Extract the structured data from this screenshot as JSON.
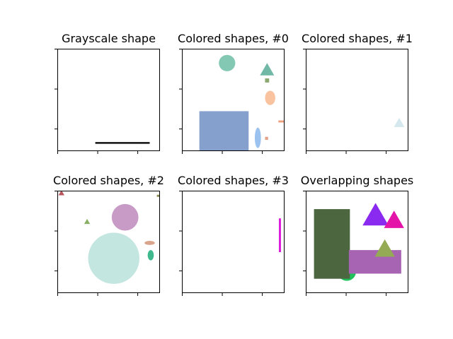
{
  "chart_data": [
    {
      "type": "image",
      "title": "Grayscale shape",
      "shapes": [
        {
          "kind": "line",
          "x1": 0.37,
          "y1": 0.92,
          "x2": 0.9,
          "y2": 0.92,
          "color": "#111111"
        }
      ]
    },
    {
      "type": "image",
      "title": "Colored shapes, #0",
      "shapes": [
        {
          "kind": "circle",
          "cx": 0.44,
          "cy": 0.14,
          "r": 0.08,
          "color": "#82c8b2"
        },
        {
          "kind": "triangle",
          "cx": 0.83,
          "cy": 0.2,
          "s": 0.12,
          "color": "#72b8a6"
        },
        {
          "kind": "rect",
          "x": 0.81,
          "y": 0.29,
          "w": 0.04,
          "h": 0.04,
          "color": "#8aa870"
        },
        {
          "kind": "ellipse",
          "cx": 0.86,
          "cy": 0.48,
          "rx": 0.05,
          "ry": 0.07,
          "color": "#f9c3a0"
        },
        {
          "kind": "rect",
          "x": 0.17,
          "y": 0.61,
          "w": 0.48,
          "h": 0.39,
          "color": "#86a0cd"
        },
        {
          "kind": "ellipse",
          "cx": 0.74,
          "cy": 0.87,
          "rx": 0.03,
          "ry": 0.1,
          "color": "#9cc3ef"
        },
        {
          "kind": "rect",
          "x": 0.81,
          "y": 0.86,
          "w": 0.03,
          "h": 0.03,
          "color": "#e4a28a"
        },
        {
          "kind": "rect",
          "x": 0.94,
          "y": 0.7,
          "w": 0.06,
          "h": 0.02,
          "color": "#f0a07c"
        }
      ]
    },
    {
      "type": "image",
      "title": "Colored shapes, #1",
      "shapes": [
        {
          "kind": "triangle",
          "cx": 0.91,
          "cy": 0.72,
          "s": 0.09,
          "color": "#d4e8ee"
        }
      ]
    },
    {
      "type": "image",
      "title": "Colored shapes, #2",
      "shapes": [
        {
          "kind": "triangle",
          "cx": 0.04,
          "cy": 0.02,
          "s": 0.05,
          "color": "#b8555a"
        },
        {
          "kind": "rect",
          "x": 0.97,
          "y": 0.04,
          "w": 0.03,
          "h": 0.02,
          "color": "#8a8a4a"
        },
        {
          "kind": "triangle",
          "cx": 0.29,
          "cy": 0.3,
          "s": 0.05,
          "color": "#8ab066"
        },
        {
          "kind": "circle",
          "cx": 0.66,
          "cy": 0.26,
          "r": 0.13,
          "color": "#c89ac6"
        },
        {
          "kind": "circle",
          "cx": 0.55,
          "cy": 0.66,
          "r": 0.25,
          "color": "#c4e6e0"
        },
        {
          "kind": "ellipse",
          "cx": 0.9,
          "cy": 0.51,
          "rx": 0.05,
          "ry": 0.02,
          "color": "#d8a48c"
        },
        {
          "kind": "ellipse",
          "cx": 0.91,
          "cy": 0.63,
          "rx": 0.03,
          "ry": 0.05,
          "color": "#3fb88e"
        }
      ]
    },
    {
      "type": "image",
      "title": "Colored shapes, #3",
      "shapes": [
        {
          "kind": "rect",
          "x": 0.945,
          "y": 0.27,
          "w": 0.02,
          "h": 0.33,
          "color": "#dc18dc"
        }
      ]
    },
    {
      "type": "image",
      "title": "Overlapping shapes",
      "shapes": [
        {
          "kind": "circle",
          "cx": 0.4,
          "cy": 0.79,
          "r": 0.09,
          "color": "#22c05a"
        },
        {
          "kind": "rect",
          "x": 0.08,
          "y": 0.18,
          "w": 0.35,
          "h": 0.68,
          "color": "#4c6640"
        },
        {
          "kind": "rect",
          "x": 0.42,
          "y": 0.58,
          "w": 0.51,
          "h": 0.23,
          "color": "#a664b2"
        },
        {
          "kind": "triangle",
          "cx": 0.68,
          "cy": 0.23,
          "s": 0.22,
          "color": "#8a2af0"
        },
        {
          "kind": "triangle",
          "cx": 0.86,
          "cy": 0.28,
          "s": 0.17,
          "color": "#e414a8"
        },
        {
          "kind": "triangle",
          "cx": 0.77,
          "cy": 0.56,
          "s": 0.17,
          "color": "#94aa54"
        }
      ]
    }
  ]
}
